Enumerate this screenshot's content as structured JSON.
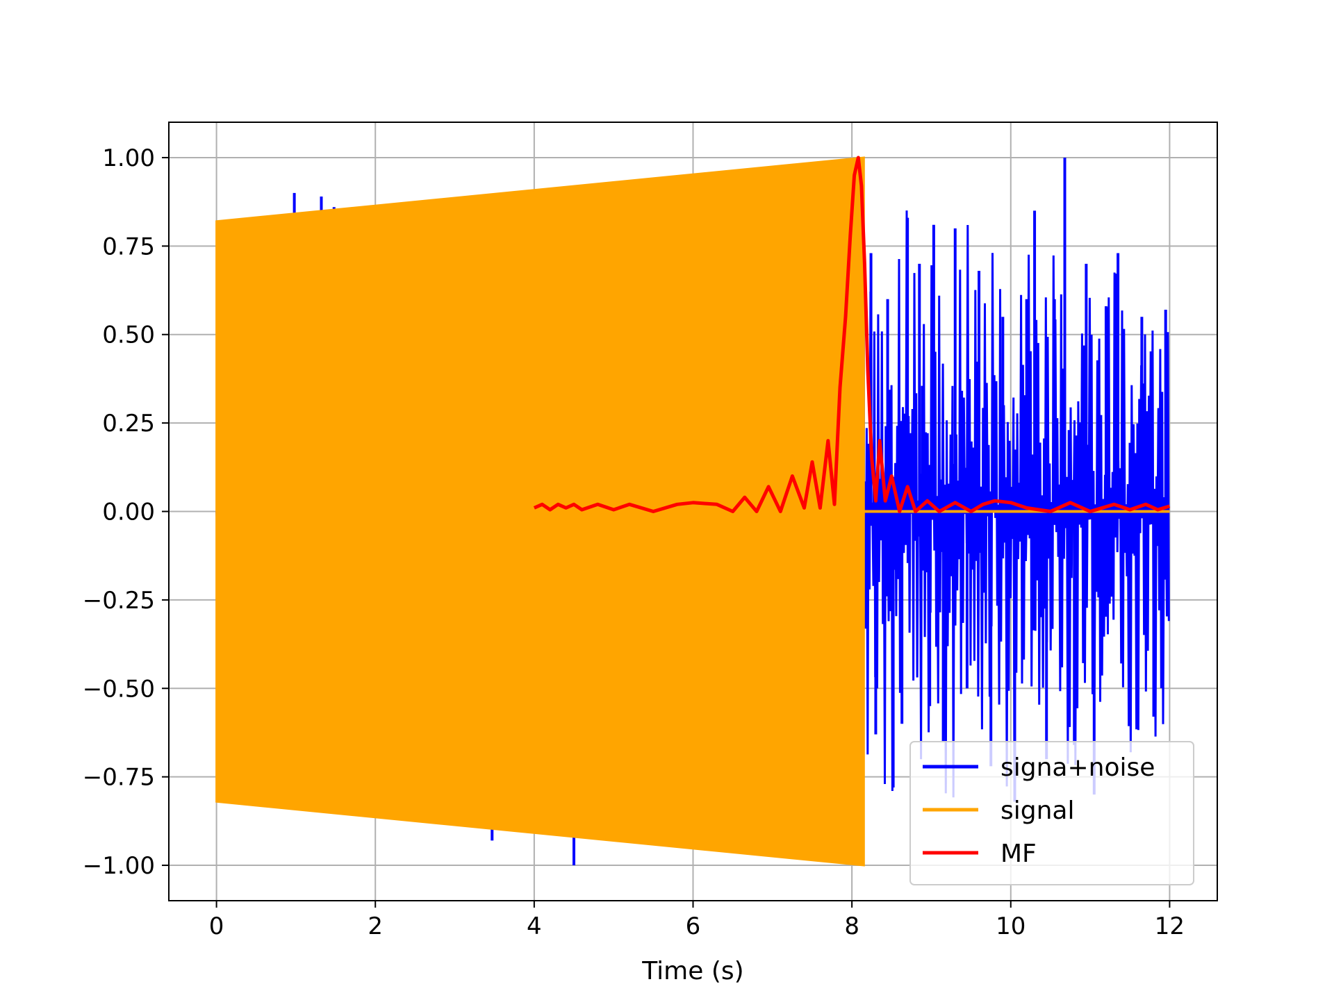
{
  "chart_data": {
    "type": "line",
    "title": "",
    "xlabel": "Time (s)",
    "ylabel": "",
    "xlim": [
      -0.6,
      12.6
    ],
    "ylim": [
      -1.1,
      1.1
    ],
    "xticks": [
      0,
      2,
      4,
      6,
      8,
      10,
      12
    ],
    "xtick_labels": [
      "0",
      "2",
      "4",
      "6",
      "8",
      "10",
      "12"
    ],
    "yticks": [
      1.0,
      0.75,
      0.5,
      0.25,
      0.0,
      -0.25,
      -0.5,
      -0.75,
      -1.0
    ],
    "ytick_labels": [
      "1.00",
      "0.75",
      "0.50",
      "0.25",
      "0.00",
      "−0.25",
      "−0.50",
      "−0.75",
      "−1.00"
    ],
    "grid": true,
    "legend_position": "bottom-right",
    "series": [
      {
        "name": "signa+noise",
        "color": "#0000ff",
        "description_points": {
          "x_range": [
            0,
            12
          ],
          "spikes_before_8_2": [
            {
              "x": 0.98,
              "y": 0.9
            },
            {
              "x": 1.32,
              "y": 0.89
            },
            {
              "x": 1.48,
              "y": 0.86
            },
            {
              "x": 3.47,
              "y": -0.93
            },
            {
              "x": 4.15,
              "y": 0.91
            },
            {
              "x": 4.5,
              "y": -1.0
            }
          ],
          "noise_after_8_2": [
            {
              "x": 8.24,
              "y": 0.73
            },
            {
              "x": 8.3,
              "y": -0.63
            },
            {
              "x": 8.45,
              "y": 0.6
            },
            {
              "x": 8.52,
              "y": -0.78
            },
            {
              "x": 8.63,
              "y": -0.6
            },
            {
              "x": 8.7,
              "y": 0.83
            },
            {
              "x": 8.85,
              "y": 0.7
            },
            {
              "x": 8.98,
              "y": -0.55
            },
            {
              "x": 9.03,
              "y": 0.81
            },
            {
              "x": 9.15,
              "y": -0.65
            },
            {
              "x": 9.3,
              "y": 0.8
            },
            {
              "x": 9.45,
              "y": -0.5
            },
            {
              "x": 9.6,
              "y": 0.68
            },
            {
              "x": 9.75,
              "y": -0.72
            },
            {
              "x": 9.9,
              "y": 0.55
            },
            {
              "x": 10.05,
              "y": -0.82
            },
            {
              "x": 10.2,
              "y": 0.6
            },
            {
              "x": 10.3,
              "y": 0.85
            },
            {
              "x": 10.45,
              "y": -0.7
            },
            {
              "x": 10.55,
              "y": 0.6
            },
            {
              "x": 10.68,
              "y": 1.0
            },
            {
              "x": 10.8,
              "y": -0.66
            },
            {
              "x": 10.95,
              "y": 0.7
            },
            {
              "x": 11.05,
              "y": -0.8
            },
            {
              "x": 11.2,
              "y": 0.58
            },
            {
              "x": 11.35,
              "y": 0.73
            },
            {
              "x": 11.5,
              "y": -0.6
            },
            {
              "x": 11.65,
              "y": 0.55
            },
            {
              "x": 11.8,
              "y": -0.58
            },
            {
              "x": 11.95,
              "y": 0.57
            }
          ],
          "typical_amplitude": 0.5
        }
      },
      {
        "name": "signal",
        "color": "#ffa500",
        "envelope": {
          "x": [
            0.0,
            8.15
          ],
          "upper": [
            0.82,
            1.0
          ],
          "lower": [
            -0.82,
            -1.0
          ],
          "zero_after_x": 8.15
        }
      },
      {
        "name": "MF",
        "color": "#ff0000",
        "x": [
          4.0,
          4.1,
          4.2,
          4.3,
          4.4,
          4.5,
          4.6,
          4.8,
          5.0,
          5.2,
          5.5,
          5.8,
          6.0,
          6.3,
          6.5,
          6.65,
          6.8,
          6.95,
          7.1,
          7.25,
          7.4,
          7.5,
          7.6,
          7.7,
          7.78,
          7.85,
          7.92,
          7.98,
          8.03,
          8.08,
          8.12,
          8.16,
          8.2,
          8.25,
          8.3,
          8.35,
          8.42,
          8.5,
          8.6,
          8.7,
          8.8,
          8.95,
          9.1,
          9.3,
          9.5,
          9.65,
          9.8,
          10.0,
          10.2,
          10.5,
          10.75,
          11.0,
          11.3,
          11.5,
          11.7,
          11.85,
          12.0
        ],
        "values": [
          0.01,
          0.02,
          0.005,
          0.02,
          0.01,
          0.02,
          0.005,
          0.02,
          0.005,
          0.02,
          0.0,
          0.02,
          0.025,
          0.02,
          0.0,
          0.04,
          0.0,
          0.07,
          0.0,
          0.1,
          0.01,
          0.14,
          0.01,
          0.2,
          0.02,
          0.35,
          0.55,
          0.78,
          0.95,
          1.0,
          0.92,
          0.7,
          0.4,
          0.15,
          0.03,
          0.2,
          0.03,
          0.1,
          0.0,
          0.07,
          0.0,
          0.03,
          0.0,
          0.025,
          0.0,
          0.02,
          0.03,
          0.025,
          0.01,
          0.0,
          0.025,
          0.0,
          0.02,
          0.005,
          0.02,
          0.005,
          0.015
        ]
      }
    ]
  }
}
